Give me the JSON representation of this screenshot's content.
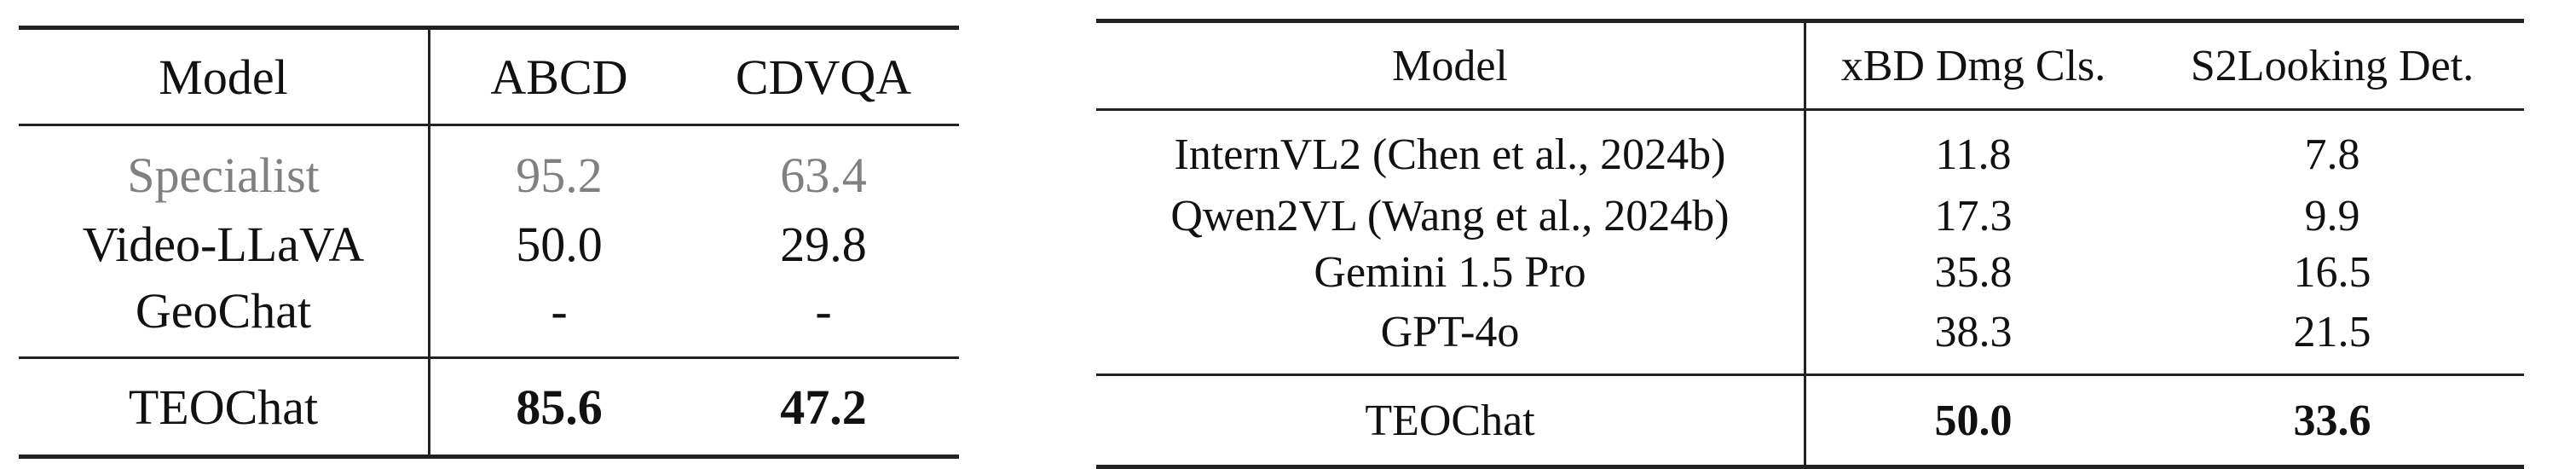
{
  "table1": {
    "headers": [
      "Model",
      "ABCD",
      "CDVQA"
    ],
    "rows": [
      {
        "model": "Specialist",
        "v1": "95.2",
        "v2": "63.4"
      },
      {
        "model": "Video-LLaVA",
        "v1": "50.0",
        "v2": "29.8"
      },
      {
        "model": "GeoChat",
        "v1": "-",
        "v2": "-"
      }
    ],
    "footer": {
      "model": "TEOChat",
      "v1": "85.6",
      "v2": "47.2"
    }
  },
  "table2": {
    "headers": [
      "Model",
      "xBD Dmg Cls.",
      "S2Looking Det."
    ],
    "rows": [
      {
        "model": "InternVL2 (Chen et al., 2024b)",
        "v1": "11.8",
        "v2": "7.8"
      },
      {
        "model": "Qwen2VL (Wang et al., 2024b)",
        "v1": "17.3",
        "v2": "9.9"
      },
      {
        "model": "Gemini 1.5 Pro",
        "v1": "35.8",
        "v2": "16.5"
      },
      {
        "model": "GPT-4o",
        "v1": "38.3",
        "v2": "21.5"
      }
    ],
    "footer": {
      "model": "TEOChat",
      "v1": "50.0",
      "v2": "33.6"
    }
  },
  "colors": {
    "rule": "#222222",
    "specialist_text": "#808080",
    "text": "#111111"
  }
}
